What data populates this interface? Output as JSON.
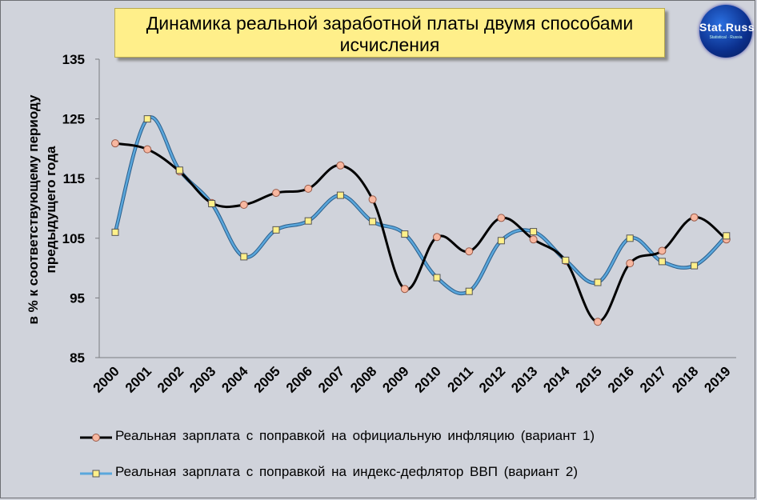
{
  "title": "Динамика реальной заработной платы двумя способами исчисления",
  "logo": {
    "text": "Stat.Russ",
    "subtext": "Statistical · Russia"
  },
  "colors": {
    "series1": "#000000",
    "series1_marker": "#f7b7a0",
    "series2": "#5aa7dc",
    "series2_marker": "#fff08a",
    "background": "#d0d3db",
    "title_bg": "#ffef8a"
  },
  "chart_data": {
    "type": "line",
    "ylabel": "в % к соответствующему периоду предыдущего года",
    "ylim": [
      85,
      135
    ],
    "yticks": [
      85,
      95,
      105,
      115,
      125,
      135
    ],
    "grid": false,
    "legend_position": "bottom",
    "x": [
      "2000",
      "2001",
      "2002",
      "2003",
      "2004",
      "2005",
      "2006",
      "2007",
      "2008",
      "2009",
      "2010",
      "2011",
      "2012",
      "2013",
      "2014",
      "2015",
      "2016",
      "2017",
      "2018",
      "2019"
    ],
    "series": [
      {
        "name": "Реальная зарплата с поправкой на официальную инфляцию (вариант 1)",
        "values": [
          120.9,
          119.9,
          116.2,
          110.9,
          110.6,
          112.6,
          113.3,
          117.2,
          111.5,
          96.5,
          105.2,
          102.8,
          108.4,
          104.8,
          101.2,
          91.0,
          100.8,
          102.9,
          108.5,
          104.8
        ]
      },
      {
        "name": "Реальная зарплата с поправкой на индекс-дефлятор ВВП (вариант 2)",
        "values": [
          106.0,
          125.0,
          116.4,
          110.8,
          101.9,
          106.4,
          107.9,
          112.2,
          107.8,
          105.7,
          98.4,
          96.1,
          104.6,
          106.1,
          101.3,
          97.6,
          105.0,
          101.1,
          100.4,
          105.4
        ]
      }
    ]
  }
}
